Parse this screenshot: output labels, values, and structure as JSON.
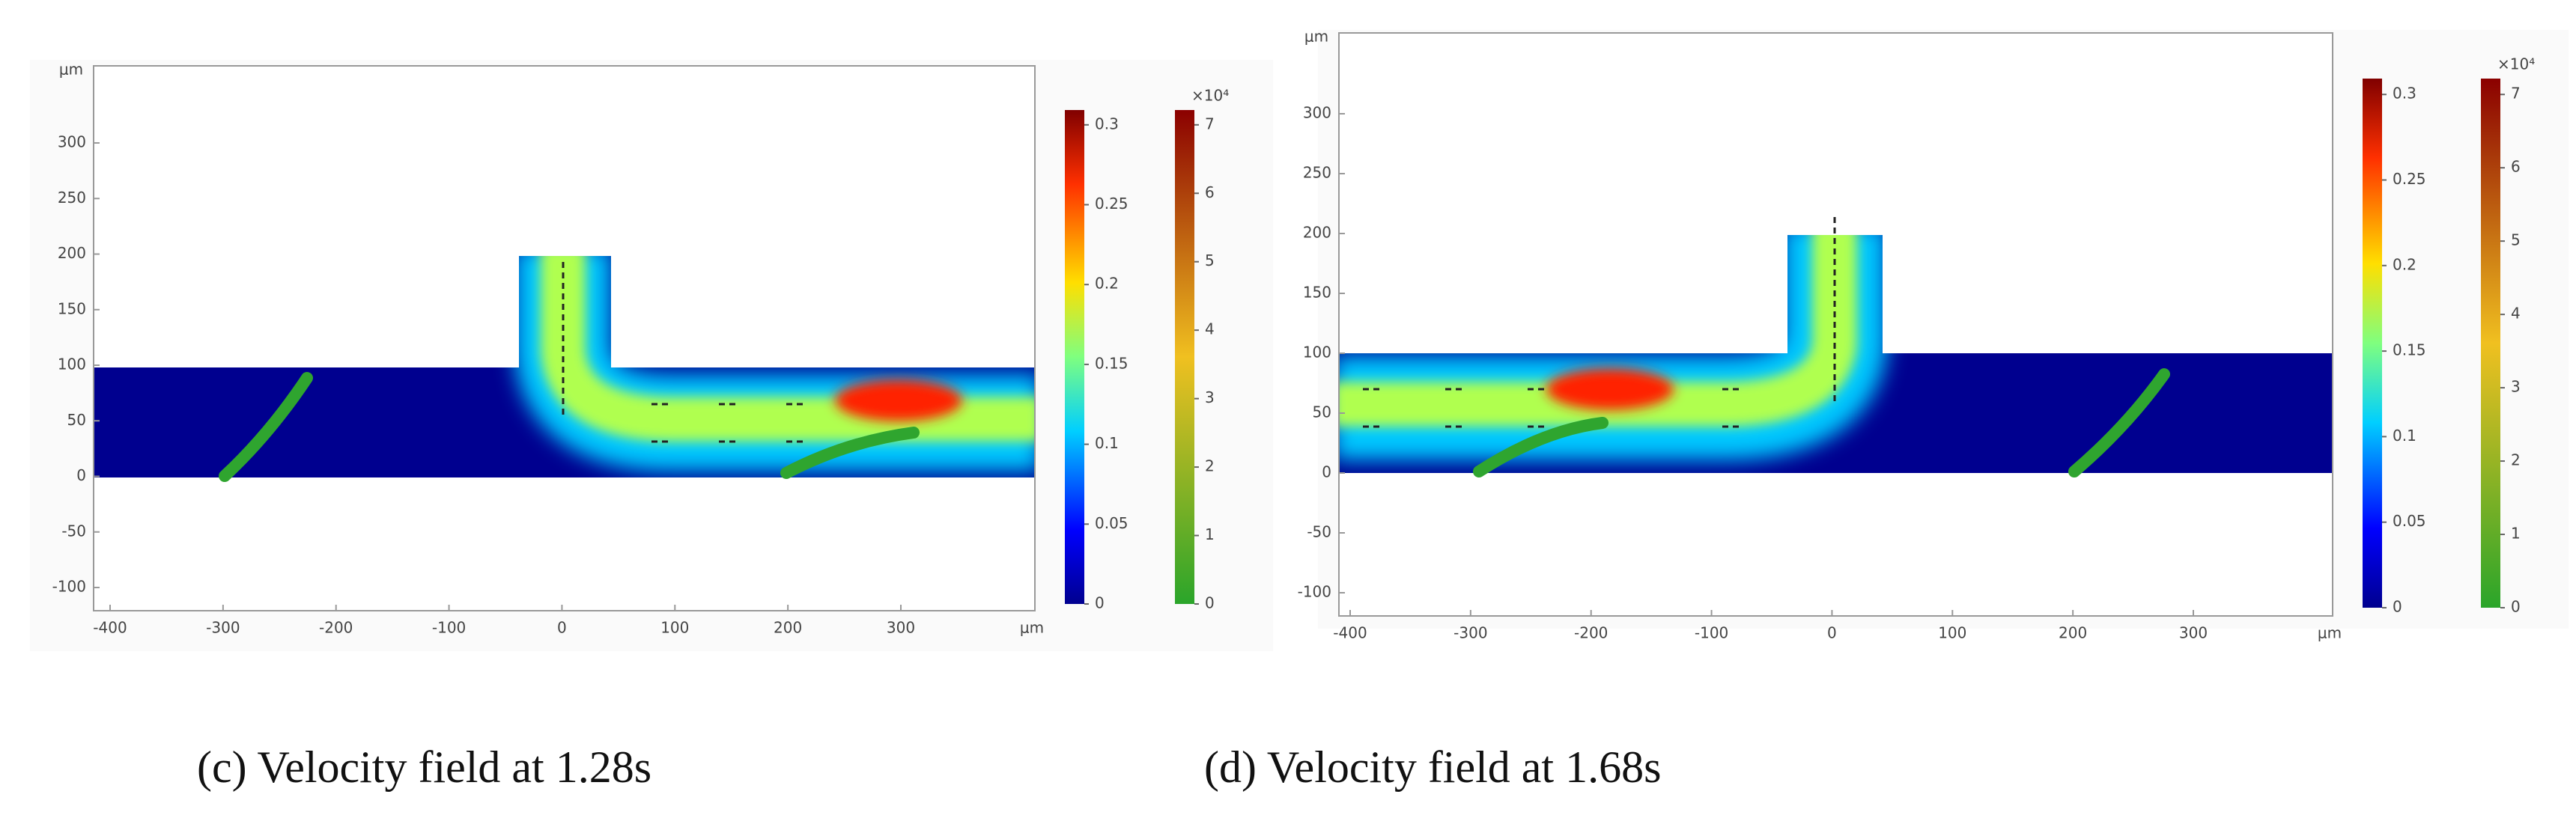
{
  "panels": [
    {
      "caption": "(c) Velocity field at 1.28s",
      "unit": "μm",
      "xticks": [
        -400,
        -300,
        -200,
        -100,
        0,
        100,
        200,
        300
      ],
      "yticks": [
        300,
        250,
        200,
        150,
        100,
        50,
        0,
        -50,
        -100
      ],
      "colorbars": [
        {
          "ticks": [
            0,
            0.05,
            0.1,
            0.15,
            0.2,
            0.25,
            0.3
          ]
        },
        {
          "multiplier": "×10⁴",
          "ticks": [
            0,
            1,
            2,
            3,
            4,
            5,
            6,
            7
          ]
        }
      ]
    },
    {
      "caption": "(d) Velocity field at 1.68s",
      "unit": "μm",
      "xticks": [
        -400,
        -300,
        -200,
        -100,
        0,
        100,
        200,
        300
      ],
      "yticks": [
        300,
        250,
        200,
        150,
        100,
        50,
        0,
        -50,
        -100
      ],
      "colorbars": [
        {
          "ticks": [
            0,
            0.05,
            0.1,
            0.15,
            0.2,
            0.25,
            0.3
          ]
        },
        {
          "multiplier": "×10⁴",
          "ticks": [
            0,
            1,
            2,
            3,
            4,
            5,
            6,
            7
          ]
        }
      ]
    }
  ]
}
